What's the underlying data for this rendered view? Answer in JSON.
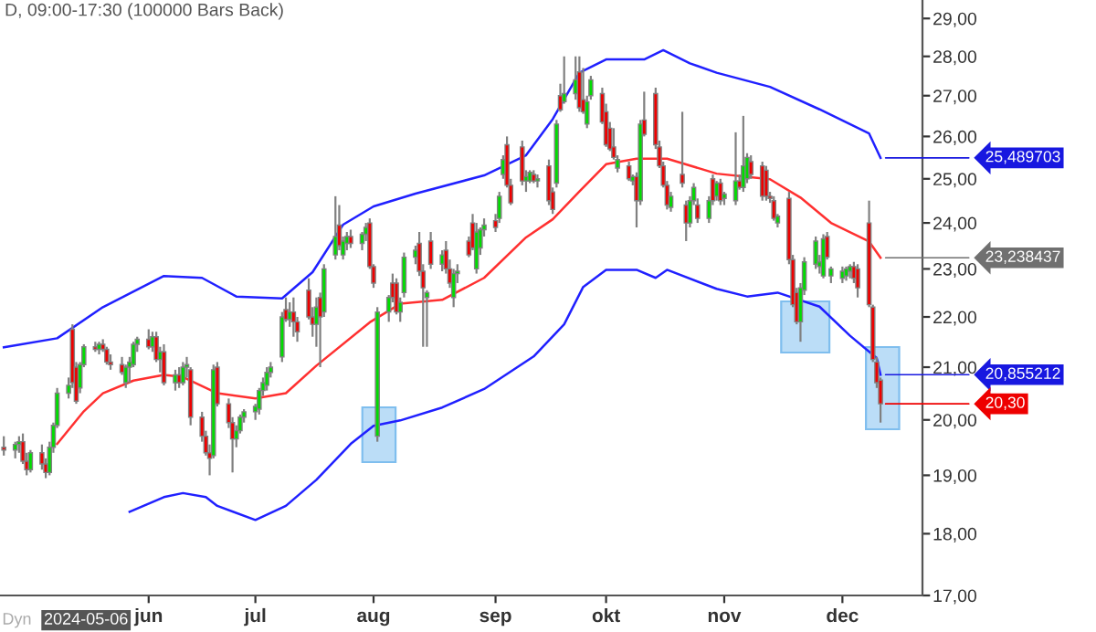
{
  "chart_data": {
    "type": "candlestick",
    "title": "D, 09:00-17:30 (100000 Bars Back)",
    "x": [
      "2024-04-26",
      "2024-04-29",
      "2024-04-30",
      "2024-05-01",
      "2024-05-02",
      "2024-05-03",
      "2024-05-06",
      "2024-05-07",
      "2024-05-08",
      "2024-05-09",
      "2024-05-10",
      "2024-05-13",
      "2024-05-14",
      "2024-05-15",
      "2024-05-16",
      "2024-05-17",
      "2024-05-20",
      "2024-05-21",
      "2024-05-22",
      "2024-05-23",
      "2024-05-24",
      "2024-05-27",
      "2024-05-28",
      "2024-05-29",
      "2024-05-30",
      "2024-05-31",
      "2024-06-03",
      "2024-06-04",
      "2024-06-05",
      "2024-06-06",
      "2024-06-07",
      "2024-06-10",
      "2024-06-11",
      "2024-06-12",
      "2024-06-13",
      "2024-06-14",
      "2024-06-17",
      "2024-06-18",
      "2024-06-19",
      "2024-06-20",
      "2024-06-21",
      "2024-06-24",
      "2024-06-25",
      "2024-06-26",
      "2024-06-27",
      "2024-06-28",
      "2024-07-01",
      "2024-07-02",
      "2024-07-03",
      "2024-07-04",
      "2024-07-05",
      "2024-07-08",
      "2024-07-09",
      "2024-07-10",
      "2024-07-11",
      "2024-07-12",
      "2024-07-15",
      "2024-07-16",
      "2024-07-17",
      "2024-07-18",
      "2024-07-19",
      "2024-07-22",
      "2024-07-23",
      "2024-07-24",
      "2024-07-25",
      "2024-07-26",
      "2024-07-29",
      "2024-07-30",
      "2024-07-31",
      "2024-08-01",
      "2024-08-02",
      "2024-08-05",
      "2024-08-06",
      "2024-08-07",
      "2024-08-08",
      "2024-08-09",
      "2024-08-12",
      "2024-08-13",
      "2024-08-14",
      "2024-08-15",
      "2024-08-16",
      "2024-08-19",
      "2024-08-20",
      "2024-08-21",
      "2024-08-22",
      "2024-08-23",
      "2024-08-26",
      "2024-08-27",
      "2024-08-28",
      "2024-08-29",
      "2024-08-30",
      "2024-09-02",
      "2024-09-03",
      "2024-09-04",
      "2024-09-05",
      "2024-09-06",
      "2024-09-09",
      "2024-09-10",
      "2024-09-11",
      "2024-09-12",
      "2024-09-13",
      "2024-09-16",
      "2024-09-17",
      "2024-09-18",
      "2024-09-19",
      "2024-09-20",
      "2024-09-23",
      "2024-09-24",
      "2024-09-25",
      "2024-09-26",
      "2024-09-27",
      "2024-09-30",
      "2024-10-01",
      "2024-10-02",
      "2024-10-03",
      "2024-10-04",
      "2024-10-07",
      "2024-10-08",
      "2024-10-09",
      "2024-10-10",
      "2024-10-11",
      "2024-10-14",
      "2024-10-15",
      "2024-10-16",
      "2024-10-17",
      "2024-10-18",
      "2024-10-21",
      "2024-10-22",
      "2024-10-23",
      "2024-10-24",
      "2024-10-25",
      "2024-10-28",
      "2024-10-29",
      "2024-10-30",
      "2024-10-31",
      "2024-11-01",
      "2024-11-04",
      "2024-11-05",
      "2024-11-06",
      "2024-11-07",
      "2024-11-08",
      "2024-11-11",
      "2024-11-12",
      "2024-11-13",
      "2024-11-14",
      "2024-11-15",
      "2024-11-18",
      "2024-11-19",
      "2024-11-20",
      "2024-11-21",
      "2024-11-22",
      "2024-11-25",
      "2024-11-26",
      "2024-11-27",
      "2024-11-28",
      "2024-11-29",
      "2024-12-02",
      "2024-12-03",
      "2024-12-04",
      "2024-12-05",
      "2024-12-06",
      "2024-12-09",
      "2024-12-10",
      "2024-12-11",
      "2024-12-12"
    ],
    "ohlc": [
      [
        19.5,
        19.7,
        19.35,
        19.45
      ],
      [
        19.45,
        19.6,
        19.3,
        19.55
      ],
      [
        19.55,
        19.7,
        19.4,
        19.6
      ],
      [
        19.6,
        19.75,
        19.2,
        19.25
      ],
      [
        19.25,
        19.4,
        19.0,
        19.1
      ],
      [
        19.1,
        19.45,
        19.05,
        19.4
      ],
      [
        19.4,
        19.55,
        19.1,
        19.2
      ],
      [
        19.2,
        19.3,
        18.95,
        19.05
      ],
      [
        19.05,
        19.6,
        19.0,
        19.5
      ],
      [
        19.5,
        19.95,
        19.4,
        19.9
      ],
      [
        19.9,
        20.6,
        19.85,
        20.5
      ],
      [
        20.5,
        20.8,
        20.4,
        20.65
      ],
      [
        21.75,
        21.85,
        20.6,
        20.7
      ],
      [
        21.0,
        21.1,
        20.3,
        20.35
      ],
      [
        20.6,
        21.1,
        20.5,
        21.05
      ],
      [
        21.05,
        21.45,
        21.0,
        21.4
      ],
      [
        21.4,
        21.5,
        21.3,
        21.35
      ],
      [
        21.35,
        21.5,
        21.25,
        21.45
      ],
      [
        21.45,
        21.55,
        21.3,
        21.35
      ],
      [
        21.35,
        21.4,
        21.05,
        21.1
      ],
      [
        21.1,
        21.25,
        20.95,
        21.05
      ],
      [
        21.05,
        21.2,
        20.85,
        20.9
      ],
      [
        20.7,
        21.05,
        20.6,
        21.0
      ],
      [
        21.0,
        21.2,
        20.7,
        21.1
      ],
      [
        21.05,
        21.5,
        21.0,
        21.45
      ],
      [
        21.45,
        21.6,
        21.3,
        21.55
      ],
      [
        21.55,
        21.75,
        21.35,
        21.4
      ],
      [
        21.4,
        21.7,
        21.3,
        21.6
      ],
      [
        21.6,
        21.7,
        21.1,
        21.15
      ],
      [
        21.15,
        21.4,
        20.9,
        21.3
      ],
      [
        21.3,
        21.45,
        20.65,
        20.7
      ],
      [
        20.7,
        20.95,
        20.55,
        20.85
      ],
      [
        20.85,
        21.0,
        20.6,
        20.7
      ],
      [
        20.7,
        21.1,
        20.65,
        21.0
      ],
      [
        21.0,
        21.2,
        20.8,
        21.05
      ],
      [
        20.95,
        21.0,
        19.9,
        20.05
      ],
      [
        20.05,
        20.15,
        19.6,
        19.7
      ],
      [
        19.7,
        19.8,
        19.35,
        19.4
      ],
      [
        19.4,
        19.55,
        19.0,
        19.3
      ],
      [
        19.35,
        21.05,
        19.3,
        20.95
      ],
      [
        21.0,
        21.1,
        20.25,
        20.3
      ],
      [
        20.3,
        20.4,
        19.85,
        19.95
      ],
      [
        19.95,
        20.05,
        19.05,
        19.65
      ],
      [
        19.65,
        19.9,
        19.5,
        19.8
      ],
      [
        19.8,
        20.1,
        19.75,
        20.05
      ],
      [
        20.05,
        20.2,
        19.95,
        20.15
      ],
      [
        20.15,
        20.3,
        20.0,
        20.25
      ],
      [
        20.2,
        20.6,
        20.1,
        20.55
      ],
      [
        20.55,
        20.8,
        20.45,
        20.7
      ],
      [
        20.65,
        21.0,
        20.55,
        20.9
      ],
      [
        20.9,
        21.1,
        20.8,
        21.0
      ],
      [
        21.2,
        22.1,
        21.1,
        22.0
      ],
      [
        22.15,
        22.4,
        21.9,
        21.95
      ],
      [
        21.95,
        22.3,
        21.8,
        22.1
      ],
      [
        22.1,
        22.4,
        21.6,
        21.9
      ],
      [
        21.9,
        22.0,
        21.5,
        21.7
      ],
      [
        22.55,
        22.8,
        21.95,
        22.0
      ],
      [
        22.0,
        22.2,
        21.6,
        21.85
      ],
      [
        21.85,
        22.4,
        21.4,
        22.2
      ],
      [
        22.4,
        22.5,
        21.0,
        22.0
      ],
      [
        22.1,
        23.1,
        22.0,
        23.0
      ],
      [
        23.3,
        24.6,
        23.2,
        23.7
      ],
      [
        23.95,
        24.4,
        23.4,
        23.5
      ],
      [
        23.3,
        23.7,
        23.2,
        23.6
      ],
      [
        23.55,
        23.8,
        23.4,
        23.7
      ],
      [
        23.7,
        23.85,
        23.45,
        23.55
      ],
      [
        23.55,
        23.8,
        23.4,
        23.75
      ],
      [
        23.75,
        24.0,
        23.6,
        23.9
      ],
      [
        24.0,
        24.1,
        23.0,
        23.05
      ],
      [
        23.05,
        23.1,
        22.6,
        22.7
      ],
      [
        19.7,
        22.2,
        19.6,
        22.1
      ],
      [
        22.1,
        22.45,
        21.9,
        22.4
      ],
      [
        22.7,
        22.9,
        22.3,
        22.4
      ],
      [
        22.7,
        22.8,
        22.05,
        22.1
      ],
      [
        22.1,
        22.4,
        21.9,
        22.3
      ],
      [
        22.5,
        23.35,
        22.4,
        23.25
      ],
      [
        23.25,
        23.5,
        23.1,
        23.4
      ],
      [
        23.55,
        23.8,
        22.85,
        22.95
      ],
      [
        22.95,
        23.1,
        21.4,
        22.6
      ],
      [
        22.4,
        22.55,
        21.4,
        22.5
      ],
      [
        23.6,
        23.8,
        23.0,
        23.1
      ],
      [
        23.1,
        23.4,
        22.95,
        23.3
      ],
      [
        23.4,
        23.6,
        22.9,
        23.0
      ],
      [
        23.0,
        23.2,
        22.6,
        22.7
      ],
      [
        22.4,
        23.0,
        22.2,
        22.9
      ],
      [
        22.9,
        23.1,
        22.7,
        22.95
      ],
      [
        23.6,
        23.7,
        23.25,
        23.3
      ],
      [
        24.0,
        24.2,
        23.4,
        23.45
      ],
      [
        23.0,
        24.0,
        22.9,
        23.8
      ],
      [
        23.45,
        23.9,
        23.3,
        23.85
      ],
      [
        23.85,
        24.1,
        23.7,
        23.95
      ],
      [
        24.05,
        24.2,
        23.8,
        23.9
      ],
      [
        24.1,
        24.7,
        24.0,
        24.6
      ],
      [
        25.1,
        25.55,
        25.0,
        25.45
      ],
      [
        25.8,
        26.0,
        24.8,
        24.85
      ],
      [
        24.85,
        25.0,
        24.4,
        24.45
      ],
      [
        25.75,
        25.9,
        24.85,
        24.95
      ],
      [
        24.95,
        25.2,
        24.7,
        25.05
      ],
      [
        24.95,
        25.2,
        24.9,
        25.15
      ],
      [
        25.1,
        25.2,
        24.9,
        24.95
      ],
      [
        24.95,
        25.1,
        24.8,
        25.0
      ],
      [
        25.3,
        25.45,
        24.4,
        24.5
      ],
      [
        24.7,
        24.8,
        24.2,
        24.3
      ],
      [
        24.9,
        26.4,
        24.8,
        26.3
      ],
      [
        27.0,
        27.3,
        26.6,
        26.65
      ],
      [
        26.85,
        28.0,
        26.8,
        27.05
      ],
      [
        27.05,
        28.0,
        26.9,
        27.4
      ],
      [
        27.6,
        28.0,
        26.6,
        26.7
      ],
      [
        26.9,
        27.7,
        26.55,
        26.6
      ],
      [
        26.3,
        27.0,
        26.2,
        26.85
      ],
      [
        27.0,
        27.5,
        26.9,
        27.4
      ],
      [
        27.05,
        27.2,
        26.3,
        26.35
      ],
      [
        26.6,
        26.8,
        25.75,
        25.8
      ],
      [
        26.2,
        26.35,
        25.65,
        25.7
      ],
      [
        25.75,
        26.2,
        25.45,
        25.5
      ],
      [
        25.25,
        25.55,
        25.15,
        25.45
      ],
      [
        25.3,
        25.4,
        24.95,
        25.0
      ],
      [
        24.95,
        25.1,
        24.85,
        25.05
      ],
      [
        25.05,
        25.15,
        23.9,
        24.5
      ],
      [
        24.5,
        26.4,
        24.4,
        26.3
      ],
      [
        26.4,
        27.1,
        26.0,
        26.05
      ],
      [
        27.05,
        27.2,
        25.7,
        25.8
      ],
      [
        25.75,
        25.9,
        25.25,
        25.3
      ],
      [
        25.3,
        25.4,
        24.8,
        24.85
      ],
      [
        24.85,
        24.95,
        24.3,
        24.4
      ],
      [
        24.35,
        24.7,
        24.25,
        24.6
      ],
      [
        25.1,
        26.6,
        24.8,
        24.9
      ],
      [
        24.4,
        24.5,
        23.6,
        24.0
      ],
      [
        24.0,
        24.6,
        23.9,
        24.5
      ],
      [
        24.5,
        24.9,
        24.4,
        24.8
      ],
      [
        24.4,
        24.55,
        24.0,
        24.1
      ],
      [
        24.1,
        24.6,
        24.0,
        24.5
      ],
      [
        25.0,
        25.1,
        24.4,
        24.5
      ],
      [
        24.6,
        24.95,
        24.5,
        24.9
      ],
      [
        24.9,
        25.0,
        24.4,
        24.5
      ],
      [
        24.55,
        24.7,
        24.4,
        24.65
      ],
      [
        24.5,
        26.1,
        24.4,
        24.95
      ],
      [
        24.95,
        25.1,
        24.75,
        24.8
      ],
      [
        24.8,
        26.5,
        24.7,
        25.3
      ],
      [
        25.0,
        25.6,
        24.9,
        25.5
      ],
      [
        25.4,
        25.55,
        25.0,
        25.1
      ],
      [
        25.3,
        25.4,
        24.5,
        24.6
      ],
      [
        25.2,
        25.3,
        24.5,
        24.6
      ],
      [
        24.6,
        24.7,
        24.45,
        24.55
      ],
      [
        24.5,
        24.6,
        24.05,
        24.1
      ],
      [
        24.0,
        24.2,
        23.9,
        24.15
      ],
      [
        24.55,
        24.7,
        23.1,
        23.2
      ],
      [
        23.2,
        23.3,
        22.2,
        22.25
      ],
      [
        22.5,
        22.6,
        21.85,
        21.9
      ],
      [
        21.9,
        22.7,
        21.5,
        22.6
      ],
      [
        22.55,
        23.25,
        22.45,
        23.15
      ],
      [
        23.1,
        23.7,
        23.0,
        23.6
      ],
      [
        23.05,
        23.3,
        22.9,
        23.15
      ],
      [
        22.85,
        23.75,
        22.8,
        23.65
      ],
      [
        23.7,
        23.8,
        23.2,
        23.25
      ],
      [
        22.85,
        23.05,
        22.7,
        23.0
      ],
      [
        22.8,
        23.05,
        22.7,
        22.95
      ],
      [
        22.85,
        23.05,
        22.75,
        23.0
      ],
      [
        22.95,
        23.1,
        22.8,
        23.05
      ],
      [
        23.05,
        23.15,
        22.7,
        22.8
      ],
      [
        23.0,
        23.1,
        22.4,
        22.6
      ],
      [
        24.0,
        24.5,
        22.2,
        22.25
      ],
      [
        22.2,
        22.25,
        21.1,
        21.15
      ],
      [
        21.1,
        21.2,
        20.6,
        20.7
      ],
      [
        20.75,
        20.8,
        19.95,
        20.3
      ]
    ],
    "series": [
      {
        "type": "line",
        "color": "#2020ff",
        "x": [
          "2024-04-26",
          "2024-05-10",
          "2024-05-22",
          "2024-06-07",
          "2024-06-17",
          "2024-06-26",
          "2024-07-08",
          "2024-07-16",
          "2024-07-24",
          "2024-08-01",
          "2024-08-12",
          "2024-08-30",
          "2024-09-10",
          "2024-09-17",
          "2024-09-24",
          "2024-10-01",
          "2024-10-11",
          "2024-10-16",
          "2024-10-23",
          "2024-10-30",
          "2024-11-13",
          "2024-11-26",
          "2024-12-09",
          "2024-12-12"
        ],
        "values": [
          21.39,
          21.57,
          22.2,
          22.85,
          22.81,
          22.42,
          22.38,
          22.93,
          23.96,
          24.37,
          24.66,
          25.08,
          25.55,
          26.42,
          27.58,
          27.92,
          27.92,
          28.16,
          27.82,
          27.58,
          27.22,
          26.66,
          26.07,
          25.489703
        ]
      },
      {
        "type": "line",
        "color": "#ff3030",
        "x": [
          "2024-05-10",
          "2024-05-17",
          "2024-05-22",
          "2024-05-30",
          "2024-06-07",
          "2024-06-12",
          "2024-06-21",
          "2024-07-01",
          "2024-07-09",
          "2024-07-17",
          "2024-07-31",
          "2024-08-08",
          "2024-08-19",
          "2024-08-30",
          "2024-09-10",
          "2024-09-17",
          "2024-09-24",
          "2024-10-01",
          "2024-10-09",
          "2024-10-17",
          "2024-10-30",
          "2024-11-13",
          "2024-11-21",
          "2024-11-29",
          "2024-12-09",
          "2024-12-12"
        ],
        "values": [
          19.56,
          20.16,
          20.5,
          20.74,
          20.85,
          20.81,
          20.5,
          20.4,
          20.5,
          21.03,
          21.89,
          22.27,
          22.35,
          22.81,
          23.68,
          24.08,
          24.71,
          25.34,
          25.47,
          25.47,
          25.12,
          24.99,
          24.57,
          24.0,
          23.59,
          23.238437
        ]
      },
      {
        "type": "line",
        "color": "#2020ff",
        "x": [
          "2024-05-29",
          "2024-06-07",
          "2024-06-12",
          "2024-06-18",
          "2024-06-21",
          "2024-07-01",
          "2024-07-09",
          "2024-07-17",
          "2024-07-26",
          "2024-08-01",
          "2024-08-08",
          "2024-08-19",
          "2024-08-30",
          "2024-09-12",
          "2024-09-20",
          "2024-09-25",
          "2024-10-01",
          "2024-10-09",
          "2024-10-14",
          "2024-10-17",
          "2024-10-30",
          "2024-11-07",
          "2024-11-15",
          "2024-11-26",
          "2024-12-04",
          "2024-12-11",
          "2024-12-12"
        ],
        "values": [
          18.37,
          18.62,
          18.69,
          18.62,
          18.47,
          18.23,
          18.47,
          18.92,
          19.56,
          19.89,
          19.99,
          20.23,
          20.58,
          21.21,
          21.85,
          22.62,
          22.98,
          22.98,
          22.81,
          22.98,
          22.58,
          22.42,
          22.5,
          22.21,
          21.62,
          21.18,
          20.855212
        ]
      }
    ],
    "log": "y",
    "xlim": [
      "2024-04-25",
      "2024-12-23"
    ],
    "xticks": [
      {
        "value": "2024-06-03",
        "label": "jun"
      },
      {
        "value": "2024-07-01",
        "label": "jul"
      },
      {
        "value": "2024-08-01",
        "label": "aug"
      },
      {
        "value": "2024-09-02",
        "label": "sep"
      },
      {
        "value": "2024-10-01",
        "label": "okt"
      },
      {
        "value": "2024-11-01",
        "label": "nov"
      },
      {
        "value": "2024-12-02",
        "label": "dec"
      }
    ],
    "ylim": [
      17,
      29.5
    ],
    "yticks": [
      {
        "value": 17,
        "label": "17,00"
      },
      {
        "value": 18,
        "label": "18,00"
      },
      {
        "value": 19,
        "label": "19,00"
      },
      {
        "value": 20,
        "label": "20,00"
      },
      {
        "value": 21,
        "label": "21,00"
      },
      {
        "value": 22,
        "label": "22,00"
      },
      {
        "value": 23,
        "label": "23,00"
      },
      {
        "value": 24,
        "label": "24,00"
      },
      {
        "value": 25,
        "label": "25,00"
      },
      {
        "value": 26,
        "label": "26,00"
      },
      {
        "value": 27,
        "label": "27,00"
      },
      {
        "value": 28,
        "label": "28,00"
      },
      {
        "value": 29,
        "label": "29,00"
      }
    ],
    "annotations": [
      {
        "text": "25,489703",
        "x": "2024-12-12",
        "y": 25.489703
      },
      {
        "text": "23,238437",
        "x": "2024-12-12",
        "y": 23.238437
      },
      {
        "text": "20,855212",
        "x": "2024-12-12",
        "y": 20.855212
      },
      {
        "text": "20,30",
        "x": "2024-12-12",
        "y": 20.3
      },
      "Dyn",
      "2024-05-06"
    ]
  }
}
